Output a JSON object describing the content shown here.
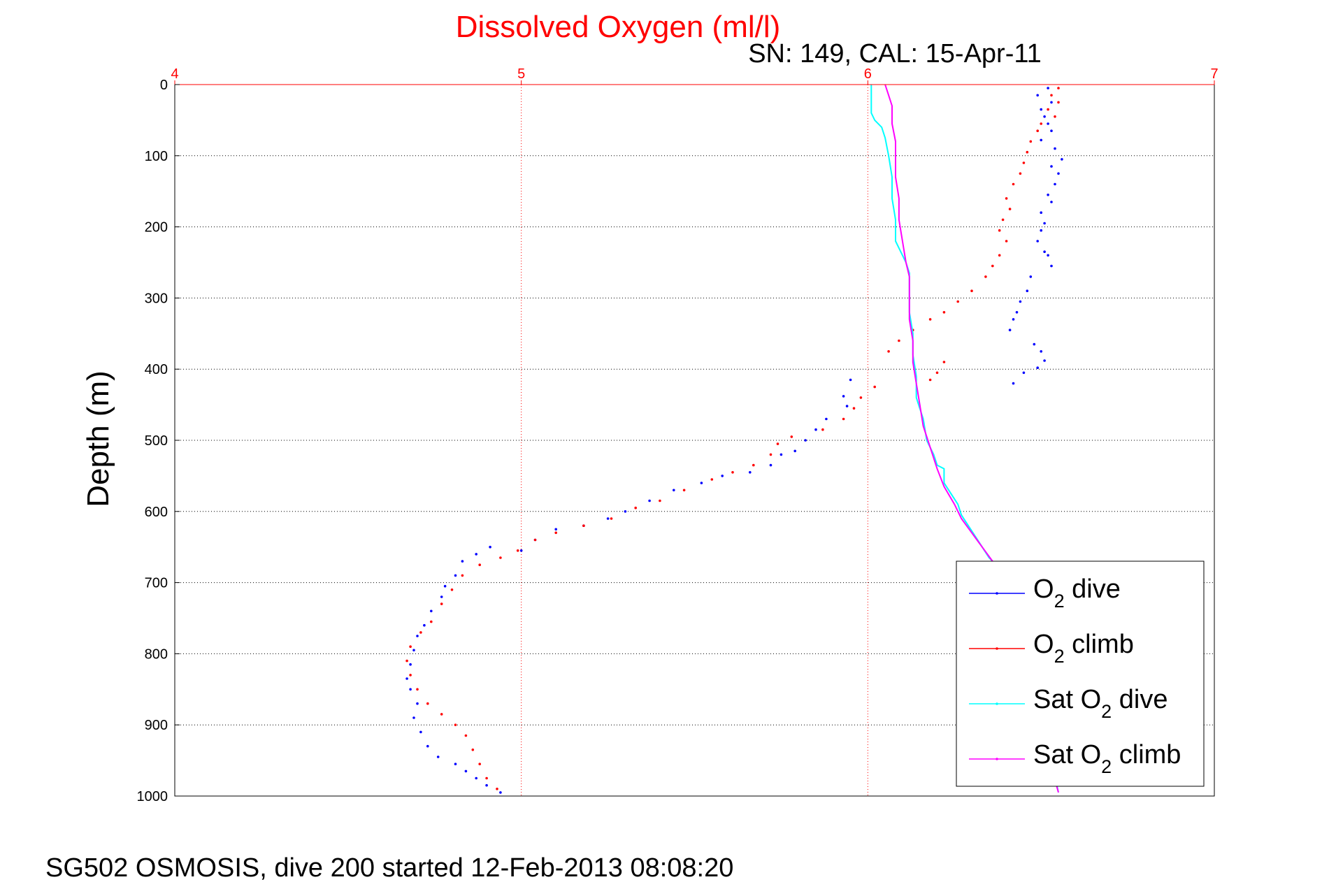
{
  "chart_data": {
    "type": "scatter",
    "title": "Dissolved Oxygen (ml/l)",
    "subtitle": "SN: 149, CAL: 15-Apr-11",
    "footer": "SG502 OSMOSIS, dive 200 started 12-Feb-2013 08:08:20",
    "xlabel": "",
    "ylabel": "Depth (m)",
    "xlim": [
      4,
      7
    ],
    "ylim": [
      0,
      1000
    ],
    "y_reversed": true,
    "x_axis_position": "top",
    "grid": true,
    "legend_position": "bottom-right",
    "xticks": [
      "4",
      "5",
      "6",
      "7"
    ],
    "yticks": [
      "0",
      "100",
      "200",
      "300",
      "400",
      "500",
      "600",
      "700",
      "800",
      "900",
      "1000"
    ],
    "colors": {
      "title": "#ff0000",
      "xaxis": "#ff0000",
      "dive": "#0000ff",
      "climb": "#ff0000",
      "sat_dive": "#00ffff",
      "sat_climb": "#ff00ff"
    },
    "series": [
      {
        "name": "O2 dive",
        "label_main": "O",
        "label_sub": "2",
        "label_rest": " dive",
        "color": "#0000ff",
        "style": "points",
        "points": [
          [
            6.52,
            5
          ],
          [
            6.49,
            15
          ],
          [
            6.53,
            25
          ],
          [
            6.5,
            35
          ],
          [
            6.51,
            45
          ],
          [
            6.52,
            55
          ],
          [
            6.53,
            65
          ],
          [
            6.5,
            78
          ],
          [
            6.54,
            90
          ],
          [
            6.56,
            105
          ],
          [
            6.53,
            115
          ],
          [
            6.55,
            125
          ],
          [
            6.54,
            140
          ],
          [
            6.52,
            155
          ],
          [
            6.53,
            165
          ],
          [
            6.5,
            180
          ],
          [
            6.51,
            195
          ],
          [
            6.5,
            205
          ],
          [
            6.49,
            220
          ],
          [
            6.51,
            235
          ],
          [
            6.52,
            240
          ],
          [
            6.53,
            255
          ],
          [
            6.47,
            270
          ],
          [
            6.46,
            290
          ],
          [
            6.44,
            305
          ],
          [
            6.43,
            320
          ],
          [
            6.42,
            330
          ],
          [
            6.41,
            345
          ],
          [
            6.48,
            365
          ],
          [
            6.5,
            375
          ],
          [
            6.51,
            388
          ],
          [
            6.49,
            398
          ],
          [
            6.45,
            405
          ],
          [
            6.42,
            420
          ],
          [
            5.95,
            415
          ],
          [
            5.93,
            438
          ],
          [
            5.94,
            452
          ],
          [
            5.88,
            470
          ],
          [
            5.85,
            485
          ],
          [
            5.82,
            500
          ],
          [
            5.79,
            515
          ],
          [
            5.75,
            520
          ],
          [
            5.72,
            535
          ],
          [
            5.66,
            545
          ],
          [
            5.58,
            550
          ],
          [
            5.52,
            560
          ],
          [
            5.44,
            570
          ],
          [
            5.37,
            585
          ],
          [
            5.3,
            600
          ],
          [
            5.25,
            610
          ],
          [
            5.18,
            620
          ],
          [
            5.1,
            625
          ],
          [
            5.04,
            640
          ],
          [
            5.0,
            655
          ],
          [
            4.91,
            650
          ],
          [
            4.87,
            660
          ],
          [
            4.83,
            670
          ],
          [
            4.81,
            690
          ],
          [
            4.78,
            705
          ],
          [
            4.77,
            720
          ],
          [
            4.74,
            740
          ],
          [
            4.72,
            760
          ],
          [
            4.7,
            775
          ],
          [
            4.69,
            795
          ],
          [
            4.68,
            815
          ],
          [
            4.67,
            835
          ],
          [
            4.68,
            850
          ],
          [
            4.7,
            870
          ],
          [
            4.69,
            890
          ],
          [
            4.71,
            910
          ],
          [
            4.73,
            930
          ],
          [
            4.76,
            945
          ],
          [
            4.81,
            955
          ],
          [
            4.84,
            965
          ],
          [
            4.87,
            975
          ],
          [
            4.9,
            985
          ],
          [
            4.94,
            995
          ]
        ]
      },
      {
        "name": "O2 climb",
        "label_main": "O",
        "label_sub": "2",
        "label_rest": " climb",
        "color": "#ff0000",
        "style": "points",
        "points": [
          [
            6.55,
            5
          ],
          [
            6.53,
            15
          ],
          [
            6.55,
            25
          ],
          [
            6.52,
            35
          ],
          [
            6.54,
            45
          ],
          [
            6.5,
            55
          ],
          [
            6.49,
            65
          ],
          [
            6.47,
            80
          ],
          [
            6.46,
            95
          ],
          [
            6.45,
            110
          ],
          [
            6.44,
            125
          ],
          [
            6.42,
            140
          ],
          [
            6.4,
            160
          ],
          [
            6.41,
            175
          ],
          [
            6.39,
            190
          ],
          [
            6.38,
            205
          ],
          [
            6.4,
            220
          ],
          [
            6.38,
            240
          ],
          [
            6.36,
            255
          ],
          [
            6.34,
            270
          ],
          [
            6.3,
            290
          ],
          [
            6.26,
            305
          ],
          [
            6.22,
            320
          ],
          [
            6.18,
            330
          ],
          [
            6.13,
            345
          ],
          [
            6.09,
            360
          ],
          [
            6.06,
            375
          ],
          [
            6.22,
            390
          ],
          [
            6.2,
            405
          ],
          [
            6.18,
            415
          ],
          [
            6.02,
            425
          ],
          [
            5.98,
            440
          ],
          [
            5.96,
            455
          ],
          [
            5.93,
            470
          ],
          [
            5.87,
            485
          ],
          [
            5.78,
            495
          ],
          [
            5.74,
            505
          ],
          [
            5.72,
            520
          ],
          [
            5.67,
            535
          ],
          [
            5.61,
            545
          ],
          [
            5.55,
            555
          ],
          [
            5.47,
            570
          ],
          [
            5.4,
            585
          ],
          [
            5.33,
            595
          ],
          [
            5.26,
            610
          ],
          [
            5.18,
            620
          ],
          [
            5.1,
            630
          ],
          [
            5.04,
            640
          ],
          [
            4.99,
            655
          ],
          [
            4.94,
            665
          ],
          [
            4.88,
            675
          ],
          [
            4.83,
            690
          ],
          [
            4.8,
            710
          ],
          [
            4.77,
            730
          ],
          [
            4.74,
            755
          ],
          [
            4.71,
            770
          ],
          [
            4.68,
            790
          ],
          [
            4.67,
            810
          ],
          [
            4.68,
            830
          ],
          [
            4.7,
            850
          ],
          [
            4.73,
            870
          ],
          [
            4.77,
            885
          ],
          [
            4.81,
            900
          ],
          [
            4.84,
            915
          ],
          [
            4.86,
            935
          ],
          [
            4.88,
            955
          ],
          [
            4.9,
            975
          ],
          [
            4.93,
            990
          ]
        ]
      },
      {
        "name": "Sat O2 dive",
        "label_main": "Sat O",
        "label_sub": "2",
        "label_rest": " dive",
        "color": "#00ffff",
        "style": "line",
        "points": [
          [
            6.01,
            0
          ],
          [
            6.01,
            20
          ],
          [
            6.01,
            40
          ],
          [
            6.02,
            50
          ],
          [
            6.04,
            60
          ],
          [
            6.05,
            75
          ],
          [
            6.06,
            100
          ],
          [
            6.07,
            130
          ],
          [
            6.07,
            160
          ],
          [
            6.08,
            190
          ],
          [
            6.08,
            220
          ],
          [
            6.1,
            240
          ],
          [
            6.11,
            250
          ],
          [
            6.12,
            265
          ],
          [
            6.12,
            290
          ],
          [
            6.12,
            320
          ],
          [
            6.13,
            350
          ],
          [
            6.13,
            380
          ],
          [
            6.14,
            410
          ],
          [
            6.14,
            440
          ],
          [
            6.16,
            470
          ],
          [
            6.17,
            500
          ],
          [
            6.19,
            520
          ],
          [
            6.2,
            535
          ],
          [
            6.22,
            540
          ],
          [
            6.22,
            560
          ],
          [
            6.24,
            575
          ],
          [
            6.26,
            590
          ],
          [
            6.27,
            605
          ],
          [
            6.29,
            620
          ],
          [
            6.31,
            635
          ],
          [
            6.33,
            650
          ],
          [
            6.35,
            665
          ],
          [
            6.38,
            680
          ],
          [
            6.42,
            700
          ],
          [
            6.46,
            720
          ],
          [
            6.49,
            760
          ],
          [
            6.5,
            800
          ],
          [
            6.51,
            850
          ],
          [
            6.52,
            900
          ],
          [
            6.53,
            950
          ],
          [
            6.55,
            995
          ]
        ]
      },
      {
        "name": "Sat O2 climb",
        "label_main": "Sat O",
        "label_sub": "2",
        "label_rest": " climb",
        "color": "#ff00ff",
        "style": "line",
        "points": [
          [
            6.05,
            0
          ],
          [
            6.06,
            15
          ],
          [
            6.07,
            30
          ],
          [
            6.07,
            55
          ],
          [
            6.08,
            80
          ],
          [
            6.08,
            100
          ],
          [
            6.08,
            130
          ],
          [
            6.09,
            160
          ],
          [
            6.09,
            190
          ],
          [
            6.1,
            220
          ],
          [
            6.11,
            250
          ],
          [
            6.12,
            270
          ],
          [
            6.12,
            300
          ],
          [
            6.12,
            330
          ],
          [
            6.13,
            360
          ],
          [
            6.13,
            390
          ],
          [
            6.14,
            420
          ],
          [
            6.15,
            450
          ],
          [
            6.16,
            480
          ],
          [
            6.18,
            510
          ],
          [
            6.2,
            540
          ],
          [
            6.22,
            565
          ],
          [
            6.25,
            590
          ],
          [
            6.27,
            610
          ],
          [
            6.3,
            630
          ],
          [
            6.33,
            650
          ],
          [
            6.36,
            670
          ],
          [
            6.4,
            690
          ],
          [
            6.44,
            710
          ],
          [
            6.47,
            740
          ],
          [
            6.49,
            780
          ],
          [
            6.5,
            820
          ],
          [
            6.51,
            870
          ],
          [
            6.52,
            920
          ],
          [
            6.53,
            960
          ],
          [
            6.55,
            995
          ]
        ]
      }
    ]
  }
}
